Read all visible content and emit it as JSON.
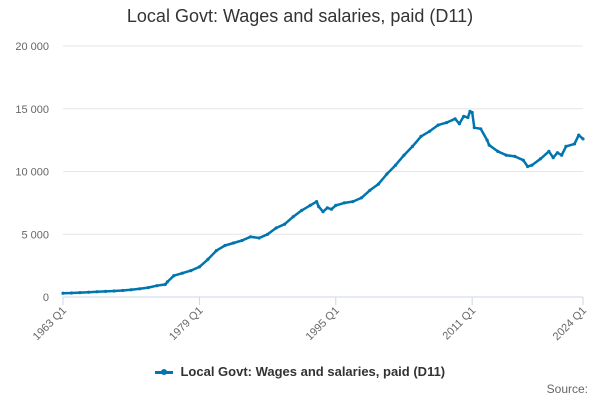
{
  "chart_data": {
    "type": "line",
    "title": "Local Govt: Wages and salaries, paid (D11)",
    "xlabel": "",
    "ylabel": "",
    "ylim": [
      0,
      20000
    ],
    "xlim": [
      1963.0,
      2024.0
    ],
    "y_ticks": [
      0,
      5000,
      10000,
      15000,
      20000
    ],
    "y_tick_labels": [
      "0",
      "5 000",
      "10 000",
      "15 000",
      "20 000"
    ],
    "x_ticks": [
      1963.0,
      1979.0,
      1995.0,
      2011.0,
      2024.0
    ],
    "x_tick_labels": [
      "1963 Q1",
      "1979 Q1",
      "1995 Q1",
      "2011 Q1",
      "2024 Q1"
    ],
    "grid": true,
    "legend_position": "bottom",
    "series": [
      {
        "name": "Local Govt: Wages and salaries, paid (D11)",
        "color": "#0075b0",
        "x": [
          1963.0,
          1964.0,
          1965.0,
          1966.0,
          1967.0,
          1968.0,
          1969.0,
          1970.0,
          1971.0,
          1972.0,
          1973.0,
          1974.0,
          1975.0,
          1975.25,
          1976.0,
          1977.0,
          1978.0,
          1979.0,
          1980.0,
          1981.0,
          1982.0,
          1983.0,
          1984.0,
          1985.0,
          1986.0,
          1987.0,
          1988.0,
          1989.0,
          1990.0,
          1991.0,
          1992.0,
          1992.75,
          1993.0,
          1993.5,
          1994.0,
          1994.5,
          1995.0,
          1996.0,
          1997.0,
          1998.0,
          1999.0,
          2000.0,
          2001.0,
          2002.0,
          2003.0,
          2004.0,
          2005.0,
          2006.0,
          2007.0,
          2008.0,
          2009.0,
          2009.5,
          2010.0,
          2010.5,
          2010.75,
          2011.0,
          2011.25,
          2012.0,
          2012.75,
          2013.0,
          2014.0,
          2015.0,
          2016.0,
          2017.0,
          2017.5,
          2018.0,
          2019.0,
          2020.0,
          2020.5,
          2021.0,
          2021.5,
          2022.0,
          2023.0,
          2023.5,
          2024.0
        ],
        "values": [
          300,
          320,
          350,
          380,
          420,
          450,
          480,
          520,
          580,
          650,
          750,
          900,
          1000,
          1200,
          1700,
          1900,
          2100,
          2400,
          3000,
          3700,
          4100,
          4300,
          4500,
          4800,
          4700,
          5000,
          5500,
          5800,
          6400,
          6900,
          7300,
          7600,
          7200,
          6800,
          7100,
          7000,
          7300,
          7500,
          7600,
          7900,
          8500,
          9000,
          9800,
          10500,
          11300,
          12000,
          12800,
          13200,
          13700,
          13900,
          14200,
          13800,
          14400,
          14300,
          14800,
          14700,
          13500,
          13400,
          12500,
          12100,
          11600,
          11300,
          11200,
          10900,
          10400,
          10500,
          11000,
          11600,
          11100,
          11500,
          11300,
          12000,
          12200,
          12900,
          12600
        ]
      }
    ]
  },
  "legend": {
    "label": "Local Govt: Wages and salaries, paid (D11)"
  },
  "source_label": "Source:"
}
